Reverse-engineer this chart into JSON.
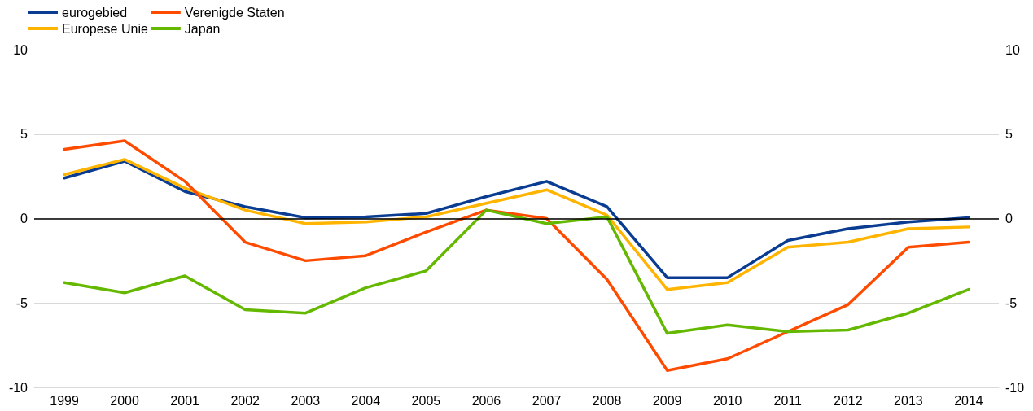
{
  "chart_data": {
    "type": "line",
    "categories": [
      "1999",
      "2000",
      "2001",
      "2002",
      "2003",
      "2004",
      "2005",
      "2006",
      "2007",
      "2008",
      "2009",
      "2010",
      "2011",
      "2012",
      "2013",
      "2014"
    ],
    "series": [
      {
        "name": "eurogebied",
        "color": "#0a3d91",
        "values": [
          2.4,
          3.4,
          1.6,
          0.7,
          0.05,
          0.1,
          0.3,
          1.3,
          2.2,
          0.7,
          -3.5,
          -3.5,
          -1.3,
          -0.6,
          -0.2,
          0.05
        ]
      },
      {
        "name": "Europese Unie",
        "color": "#ffb400",
        "values": [
          2.6,
          3.5,
          1.8,
          0.5,
          -0.3,
          -0.2,
          0.1,
          0.9,
          1.7,
          0.2,
          -4.2,
          -3.8,
          -1.7,
          -1.4,
          -0.6,
          -0.5
        ]
      },
      {
        "name": "Verenigde Staten",
        "color": "#ff4b00",
        "values": [
          4.1,
          4.6,
          2.2,
          -1.4,
          -2.5,
          -2.2,
          -0.8,
          0.5,
          0.0,
          -3.6,
          -9.0,
          -8.3,
          -6.7,
          -5.1,
          -1.7,
          -1.4
        ]
      },
      {
        "name": "Japan",
        "color": "#65b800",
        "values": [
          -3.8,
          -4.4,
          -3.4,
          -5.4,
          -5.6,
          -4.1,
          -3.1,
          0.5,
          -0.3,
          0.1,
          -6.8,
          -6.3,
          -6.7,
          -6.6,
          -5.6,
          -4.2
        ]
      }
    ],
    "ylim": [
      -10,
      10
    ],
    "yticks": [
      -10,
      -5,
      0,
      5,
      10
    ],
    "y2lim": [
      -10,
      10
    ],
    "y2ticks": [
      -10,
      -5,
      0,
      5,
      10
    ],
    "ref_lines": [
      {
        "axis": "y",
        "value": 0,
        "color": "#000000"
      }
    ],
    "grid": "y",
    "legend": "top left",
    "marker": "none",
    "line_style": "solid"
  }
}
